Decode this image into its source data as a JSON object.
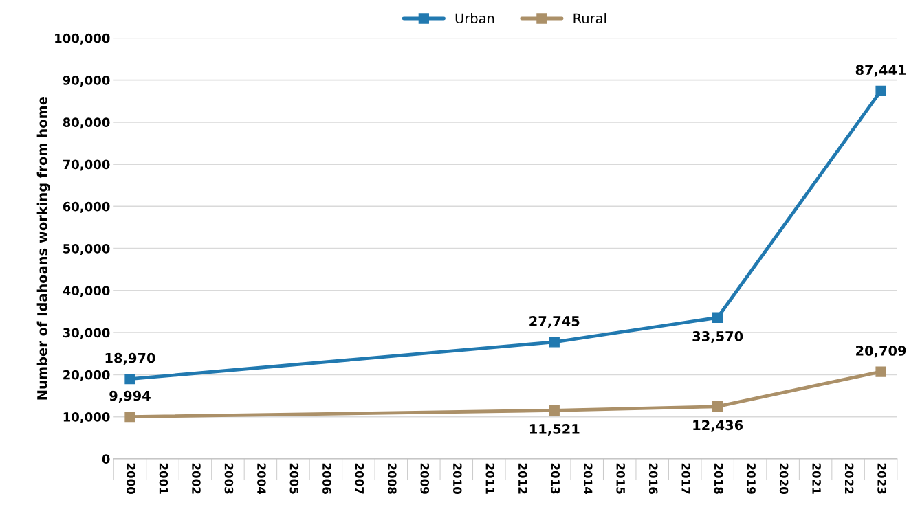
{
  "chart_data": {
    "type": "line",
    "ylabel": "Number of Idahoans working from home",
    "categories": [
      "2000",
      "2001",
      "2002",
      "2003",
      "2004",
      "2005",
      "2006",
      "2007",
      "2008",
      "2009",
      "2010",
      "2011",
      "2012",
      "2013",
      "2014",
      "2015",
      "2016",
      "2017",
      "2018",
      "2019",
      "2020",
      "2021",
      "2022",
      "2023"
    ],
    "series": [
      {
        "name": "Urban",
        "color": "#2179b0",
        "values": [
          18970,
          null,
          null,
          null,
          null,
          null,
          null,
          null,
          null,
          null,
          null,
          null,
          null,
          27745,
          null,
          null,
          null,
          null,
          33570,
          null,
          null,
          null,
          null,
          87441
        ],
        "value_labels": [
          "18,970",
          null,
          null,
          null,
          null,
          null,
          null,
          null,
          null,
          null,
          null,
          null,
          null,
          "27,745",
          null,
          null,
          null,
          null,
          "33,570",
          null,
          null,
          null,
          null,
          "87,441"
        ]
      },
      {
        "name": "Rural",
        "color": "#ab9068",
        "values": [
          9994,
          null,
          null,
          null,
          null,
          null,
          null,
          null,
          null,
          null,
          null,
          null,
          null,
          11521,
          null,
          null,
          null,
          null,
          12436,
          null,
          null,
          null,
          null,
          20709
        ],
        "value_labels": [
          "9,994",
          null,
          null,
          null,
          null,
          null,
          null,
          null,
          null,
          null,
          null,
          null,
          null,
          "11,521",
          null,
          null,
          null,
          null,
          "12,436",
          null,
          null,
          null,
          null,
          "20,709"
        ]
      }
    ],
    "ylim": [
      0,
      100000
    ],
    "yticks": [
      0,
      {
        "value": 10000,
        "label": "10,000"
      },
      {
        "value": 20000,
        "label": "20,000"
      },
      {
        "value": 30000,
        "label": "30,000"
      },
      {
        "value": 40000,
        "label": "40,000"
      },
      {
        "value": 50000,
        "label": "50,000"
      },
      {
        "value": 60000,
        "label": "60,000"
      },
      {
        "value": 70000,
        "label": "70,000"
      },
      {
        "value": 80000,
        "label": "80,000"
      },
      {
        "value": 90000,
        "label": "90,000"
      },
      {
        "value": 100000,
        "label": "100,000"
      }
    ],
    "grid": "y",
    "legend": "top",
    "marker": "square",
    "line_style": "solid"
  }
}
